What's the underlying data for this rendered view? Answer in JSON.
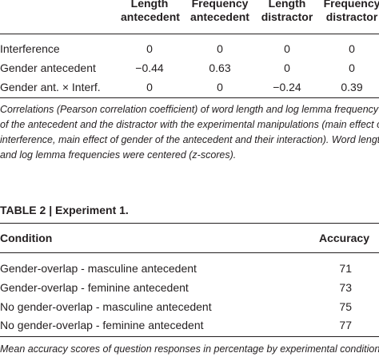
{
  "table1": {
    "columns": [
      {
        "line1": "Length",
        "line2": "antecedent"
      },
      {
        "line1": "Frequency",
        "line2": "antecedent"
      },
      {
        "line1": "Length",
        "line2": "distractor"
      },
      {
        "line1": "Frequency",
        "line2": "distractor"
      }
    ],
    "rows": [
      {
        "label": "Interference",
        "values": [
          "0",
          "0",
          "0",
          "0"
        ]
      },
      {
        "label": "Gender antecedent",
        "values": [
          "−0.44",
          "0.63",
          "0",
          "0"
        ]
      },
      {
        "label": "Gender ant. × Interf.",
        "values": [
          "0",
          "0",
          "−0.24",
          "0.39"
        ]
      }
    ],
    "caption": [
      "Correlations (Pearson correlation coefficient) of word length and log lemma frequency",
      "of the antecedent and the distractor with the experimental manipulations (main effect of",
      "interference, main effect of gender of the antecedent and their interaction). Word length",
      "and log lemma frequencies were centered (z-scores)."
    ]
  },
  "table2": {
    "title": "TABLE 2 | Experiment 1.",
    "header_condition": "Condition",
    "header_accuracy": "Accuracy",
    "rows": [
      {
        "label": "Gender-overlap - masculine antecedent",
        "value": "71"
      },
      {
        "label": "Gender-overlap - feminine antecedent",
        "value": "73"
      },
      {
        "label": "No gender-overlap - masculine antecedent",
        "value": "75"
      },
      {
        "label": "No gender-overlap - feminine antecedent",
        "value": "77"
      }
    ],
    "caption": "Mean accuracy scores of question responses in percentage by experimental condition."
  }
}
